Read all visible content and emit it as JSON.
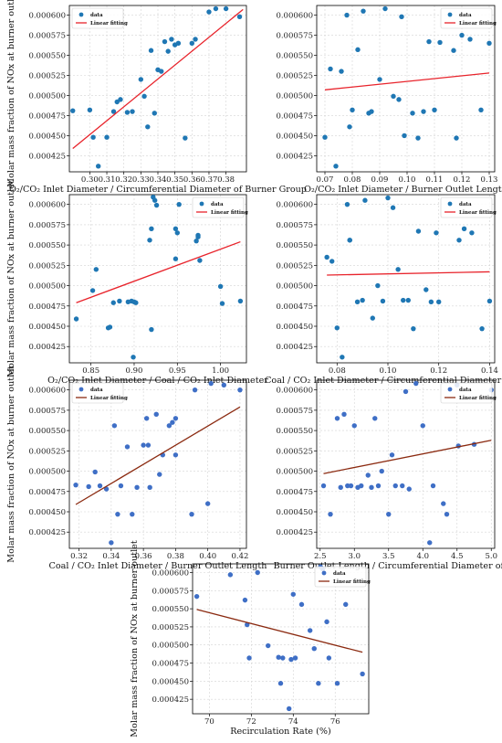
{
  "chart_data": [
    {
      "type": "scatter",
      "xlabel": "O₂/CO₂ Inlet Diameter / Circumferential Diameter of Burner Group",
      "ylabel": "Molar mass fraction of NOx at burner outlet",
      "xlim": [
        0.288,
        0.392
      ],
      "ylim": [
        0.000405,
        0.000612
      ],
      "xticks": [
        "0.30",
        "0.31",
        "0.32",
        "0.33",
        "0.34",
        "0.35",
        "0.36",
        "0.37",
        "0.38"
      ],
      "xtick_values": [
        0.3,
        0.31,
        0.32,
        0.33,
        0.34,
        0.35,
        0.36,
        0.37,
        0.38
      ],
      "yticks": [
        "0.000425",
        "0.000450",
        "0.000475",
        "0.000500",
        "0.000525",
        "0.000550",
        "0.000575",
        "0.000600"
      ],
      "ytick_values": [
        0.000425,
        0.00045,
        0.000475,
        0.0005,
        0.000525,
        0.00055,
        0.000575,
        0.0006
      ],
      "grid": true,
      "legend_position": "upper left",
      "series": [
        {
          "name": "data",
          "mode": "markers",
          "color": "#1f77b4",
          "x": [
            0.29,
            0.3,
            0.302,
            0.305,
            0.31,
            0.314,
            0.316,
            0.318,
            0.322,
            0.325,
            0.33,
            0.332,
            0.334,
            0.336,
            0.338,
            0.34,
            0.342,
            0.344,
            0.346,
            0.348,
            0.35,
            0.352,
            0.356,
            0.36,
            0.362,
            0.37,
            0.374,
            0.38,
            0.388
          ],
          "y": [
            0.000481,
            0.000482,
            0.000448,
            0.000412,
            0.000448,
            0.00048,
            0.000492,
            0.000495,
            0.000479,
            0.00048,
            0.00052,
            0.000499,
            0.000461,
            0.000556,
            0.000478,
            0.000532,
            0.00053,
            0.000567,
            0.000555,
            0.00057,
            0.000563,
            0.000565,
            0.000447,
            0.000565,
            0.00057,
            0.000604,
            0.000608,
            0.000608,
            0.000598
          ]
        },
        {
          "name": "Linear fitting",
          "mode": "line",
          "color": "#e8232b",
          "x": [
            0.29,
            0.39
          ],
          "y": [
            0.000434,
            0.000607
          ]
        }
      ]
    },
    {
      "type": "scatter",
      "xlabel": "O₂/CO₂ Inlet Diameter / Burner Outlet Length",
      "ylabel": "",
      "xlim": [
        0.067,
        0.132
      ],
      "ylim": [
        0.000405,
        0.000612
      ],
      "xticks": [
        "0.07",
        "0.08",
        "0.09",
        "0.10",
        "0.11",
        "0.12",
        "0.13"
      ],
      "xtick_values": [
        0.07,
        0.08,
        0.09,
        0.1,
        0.11,
        0.12,
        0.13
      ],
      "yticks": [
        "0.000425",
        "0.000450",
        "0.000475",
        "0.000500",
        "0.000525",
        "0.000550",
        "0.000575",
        "0.000600"
      ],
      "ytick_values": [
        0.000425,
        0.00045,
        0.000475,
        0.0005,
        0.000525,
        0.00055,
        0.000575,
        0.0006
      ],
      "grid": true,
      "legend_position": "upper right",
      "series": [
        {
          "name": "data",
          "mode": "markers",
          "color": "#1f77b4",
          "x": [
            0.07,
            0.072,
            0.074,
            0.076,
            0.078,
            0.079,
            0.08,
            0.082,
            0.084,
            0.086,
            0.087,
            0.09,
            0.092,
            0.095,
            0.097,
            0.098,
            0.099,
            0.102,
            0.104,
            0.106,
            0.108,
            0.11,
            0.112,
            0.117,
            0.118,
            0.12,
            0.123,
            0.127,
            0.13
          ],
          "y": [
            0.000448,
            0.000533,
            0.000412,
            0.00053,
            0.0006,
            0.000461,
            0.000482,
            0.000557,
            0.000605,
            0.000478,
            0.00048,
            0.00052,
            0.000608,
            0.000499,
            0.000495,
            0.000598,
            0.00045,
            0.000478,
            0.000447,
            0.00048,
            0.000567,
            0.000482,
            0.000566,
            0.000556,
            0.000447,
            0.000575,
            0.00057,
            0.000482,
            0.000565
          ]
        },
        {
          "name": "Linear fitting",
          "mode": "line",
          "color": "#e8232b",
          "x": [
            0.07,
            0.13
          ],
          "y": [
            0.000507,
            0.000528
          ]
        }
      ]
    },
    {
      "type": "scatter",
      "xlabel": "O₂/CO₂ Inlet Diameter / Coal / CO₂ Inlet Diameter",
      "ylabel": "Molar mass fraction of NOx at burner outlet",
      "xlim": [
        0.825,
        1.03
      ],
      "ylim": [
        0.000405,
        0.000612
      ],
      "xticks": [
        "0.85",
        "0.90",
        "0.95",
        "1.00"
      ],
      "xtick_values": [
        0.85,
        0.9,
        0.95,
        1.0
      ],
      "yticks": [
        "0.000425",
        "0.000450",
        "0.000475",
        "0.000500",
        "0.000525",
        "0.000550",
        "0.000575",
        "0.000600"
      ],
      "ytick_values": [
        0.000425,
        0.00045,
        0.000475,
        0.0005,
        0.000525,
        0.00055,
        0.000575,
        0.0006
      ],
      "grid": true,
      "legend_position": "upper right",
      "series": [
        {
          "name": "data",
          "mode": "markers",
          "color": "#1f77b4",
          "x": [
            0.833,
            0.852,
            0.856,
            0.87,
            0.872,
            0.876,
            0.883,
            0.893,
            0.897,
            0.899,
            0.902,
            0.918,
            0.92,
            0.922,
            0.924,
            0.926,
            0.948,
            0.95,
            0.952,
            0.972,
            0.974,
            0.976,
            1.0,
            1.002,
            1.023,
            0.92,
            0.948,
            0.9,
            0.974
          ],
          "y": [
            0.000459,
            0.000494,
            0.00052,
            0.000448,
            0.000449,
            0.000479,
            0.000481,
            0.00048,
            0.000481,
            0.000412,
            0.000479,
            0.000556,
            0.000446,
            0.000609,
            0.000605,
            0.000599,
            0.00057,
            0.000565,
            0.0006,
            0.000555,
            0.000562,
            0.000531,
            0.000499,
            0.000478,
            0.000481,
            0.00057,
            0.000533,
            0.00048,
            0.00056
          ]
        },
        {
          "name": "Linear fitting",
          "mode": "line",
          "color": "#e8232b",
          "x": [
            0.833,
            1.023
          ],
          "y": [
            0.000479,
            0.000554
          ]
        }
      ]
    },
    {
      "type": "scatter",
      "xlabel": "Coal / CO₂ Inlet Diameter / Circumferential Diameter of Burner",
      "ylabel": "",
      "xlim": [
        0.072,
        0.142
      ],
      "ylim": [
        0.000405,
        0.000612
      ],
      "xticks": [
        "0.08",
        "0.10",
        "0.12",
        "0.14"
      ],
      "xtick_values": [
        0.08,
        0.1,
        0.12,
        0.14
      ],
      "yticks": [
        "0.000425",
        "0.000450",
        "0.000475",
        "0.000500",
        "0.000525",
        "0.000550",
        "0.000575",
        "0.000600"
      ],
      "ytick_values": [
        0.000425,
        0.00045,
        0.000475,
        0.0005,
        0.000525,
        0.00055,
        0.000575,
        0.0006
      ],
      "grid": true,
      "legend_position": "upper right",
      "series": [
        {
          "name": "data",
          "mode": "markers",
          "color": "#1f77b4",
          "x": [
            0.076,
            0.078,
            0.08,
            0.082,
            0.084,
            0.085,
            0.088,
            0.09,
            0.091,
            0.094,
            0.096,
            0.098,
            0.1,
            0.102,
            0.104,
            0.106,
            0.108,
            0.11,
            0.112,
            0.115,
            0.117,
            0.119,
            0.12,
            0.128,
            0.13,
            0.133,
            0.137,
            0.14,
            0.085
          ],
          "y": [
            0.000535,
            0.00053,
            0.000448,
            0.000412,
            0.0006,
            0.000556,
            0.00048,
            0.000482,
            0.000605,
            0.00046,
            0.0005,
            0.000481,
            0.000608,
            0.000596,
            0.00052,
            0.000482,
            0.000482,
            0.000447,
            0.000567,
            0.000495,
            0.00048,
            0.000565,
            0.00048,
            0.000556,
            0.00057,
            0.000565,
            0.000447,
            0.000481,
            0.000556
          ]
        },
        {
          "name": "Linear fitting",
          "mode": "line",
          "color": "#e8232b",
          "x": [
            0.076,
            0.14
          ],
          "y": [
            0.000513,
            0.000517
          ]
        }
      ]
    },
    {
      "type": "scatter",
      "xlabel": "Coal / CO₂ Inlet Diameter / Burner Outlet Length",
      "ylabel": "Molar mass fraction of NOx at burner outlet",
      "xlim": [
        0.314,
        0.424
      ],
      "ylim": [
        0.000405,
        0.000612
      ],
      "xticks": [
        "0.32",
        "0.34",
        "0.36",
        "0.38",
        "0.40",
        "0.42"
      ],
      "xtick_values": [
        0.32,
        0.34,
        0.36,
        0.38,
        0.4,
        0.42
      ],
      "yticks": [
        "0.000425",
        "0.000450",
        "0.000475",
        "0.000500",
        "0.000525",
        "0.000550",
        "0.000575",
        "0.000600"
      ],
      "ytick_values": [
        0.000425,
        0.00045,
        0.000475,
        0.0005,
        0.000525,
        0.00055,
        0.000575,
        0.0006
      ],
      "grid": true,
      "legend_position": "upper left",
      "series": [
        {
          "name": "data",
          "mode": "markers",
          "color": "#3f6fc6",
          "x": [
            0.318,
            0.326,
            0.33,
            0.333,
            0.337,
            0.34,
            0.342,
            0.344,
            0.346,
            0.35,
            0.353,
            0.356,
            0.36,
            0.362,
            0.364,
            0.368,
            0.37,
            0.372,
            0.376,
            0.378,
            0.38,
            0.38,
            0.39,
            0.392,
            0.4,
            0.402,
            0.41,
            0.42,
            0.363
          ],
          "y": [
            0.000483,
            0.000481,
            0.000499,
            0.000482,
            0.000478,
            0.000412,
            0.000556,
            0.000447,
            0.000482,
            0.00053,
            0.000447,
            0.00048,
            0.000532,
            0.000565,
            0.00048,
            0.00057,
            0.000496,
            0.00052,
            0.000556,
            0.00056,
            0.00052,
            0.000565,
            0.000447,
            0.0006,
            0.00046,
            0.000608,
            0.000606,
            0.0006,
            0.000532
          ]
        },
        {
          "name": "Linear fitting",
          "mode": "line",
          "color": "#8b2a10",
          "x": [
            0.318,
            0.42
          ],
          "y": [
            0.000459,
            0.000579
          ]
        }
      ]
    },
    {
      "type": "scatter",
      "xlabel": "Burner Outlet Length / Circumferential Diameter of Burner",
      "ylabel": "",
      "xlim": [
        2.45,
        5.05
      ],
      "ylim": [
        0.000405,
        0.000612
      ],
      "xticks": [
        "2.5",
        "3.0",
        "3.5",
        "4.0",
        "4.5",
        "5.0"
      ],
      "xtick_values": [
        2.5,
        3.0,
        3.5,
        4.0,
        4.5,
        5.0
      ],
      "yticks": [
        "0.000425",
        "0.000450",
        "0.000475",
        "0.000500",
        "0.000525",
        "0.000550",
        "0.000575",
        "0.000600"
      ],
      "ytick_values": [
        0.000425,
        0.00045,
        0.000475,
        0.0005,
        0.000525,
        0.00055,
        0.000575,
        0.0006
      ],
      "grid": true,
      "legend_position": "upper right",
      "series": [
        {
          "name": "data",
          "mode": "markers",
          "color": "#3f6fc6",
          "x": [
            2.55,
            2.65,
            2.75,
            2.8,
            2.85,
            2.9,
            2.95,
            3.0,
            3.05,
            3.1,
            3.2,
            3.25,
            3.3,
            3.35,
            3.4,
            3.5,
            3.55,
            3.6,
            3.7,
            3.75,
            3.8,
            3.9,
            4.0,
            4.1,
            4.15,
            4.3,
            4.35,
            4.5,
            4.52,
            4.75,
            5.0
          ],
          "y": [
            0.000482,
            0.000447,
            0.000565,
            0.00048,
            0.00057,
            0.000482,
            0.000482,
            0.000556,
            0.00048,
            0.000482,
            0.000495,
            0.00048,
            0.000565,
            0.000482,
            0.0005,
            0.000447,
            0.00052,
            0.000482,
            0.000482,
            0.000598,
            0.000478,
            0.000608,
            0.000556,
            0.000412,
            0.000482,
            0.00046,
            0.000447,
            0.000606,
            0.000531,
            0.000533,
            0.0006
          ]
        },
        {
          "name": "Linear fitting",
          "mode": "line",
          "color": "#8b2a10",
          "x": [
            2.55,
            5.0
          ],
          "y": [
            0.000497,
            0.000538
          ]
        }
      ]
    },
    {
      "type": "scatter",
      "xlabel": "Recirculation Rate (%)",
      "ylabel": "Molar mass fraction of NOx at burner outlet",
      "xlim": [
        69.2,
        77.6
      ],
      "ylim": [
        0.000405,
        0.000612
      ],
      "xticks": [
        "70",
        "72",
        "74",
        "76"
      ],
      "xtick_values": [
        70,
        72,
        74,
        76
      ],
      "yticks": [
        "0.000425",
        "0.000450",
        "0.000475",
        "0.000500",
        "0.000525",
        "0.000550",
        "0.000575",
        "0.000600"
      ],
      "ytick_values": [
        0.000425,
        0.00045,
        0.000475,
        0.0005,
        0.000525,
        0.00055,
        0.000575,
        0.0006
      ],
      "grid": true,
      "legend_position": "upper right",
      "series": [
        {
          "name": "data",
          "mode": "markers",
          "color": "#3f6fc6",
          "x": [
            69.4,
            71.0,
            71.7,
            71.8,
            71.9,
            72.3,
            72.8,
            73.3,
            73.4,
            73.8,
            73.9,
            74.0,
            74.1,
            74.4,
            74.8,
            75.0,
            75.2,
            75.3,
            75.4,
            75.6,
            76.1,
            76.5,
            77.3,
            75.7,
            73.5
          ],
          "y": [
            0.000567,
            0.000597,
            0.000562,
            0.000528,
            0.000482,
            0.0006,
            0.000499,
            0.000483,
            0.000447,
            0.000412,
            0.00048,
            0.00057,
            0.000482,
            0.000556,
            0.00052,
            0.000495,
            0.000447,
            0.000608,
            0.000605,
            0.000532,
            0.000447,
            0.000556,
            0.00046,
            0.000482,
            0.000482
          ]
        },
        {
          "name": "Linear fitting",
          "mode": "line",
          "color": "#8b2a10",
          "x": [
            69.4,
            77.3
          ],
          "y": [
            0.000549,
            0.00049
          ]
        }
      ]
    }
  ]
}
